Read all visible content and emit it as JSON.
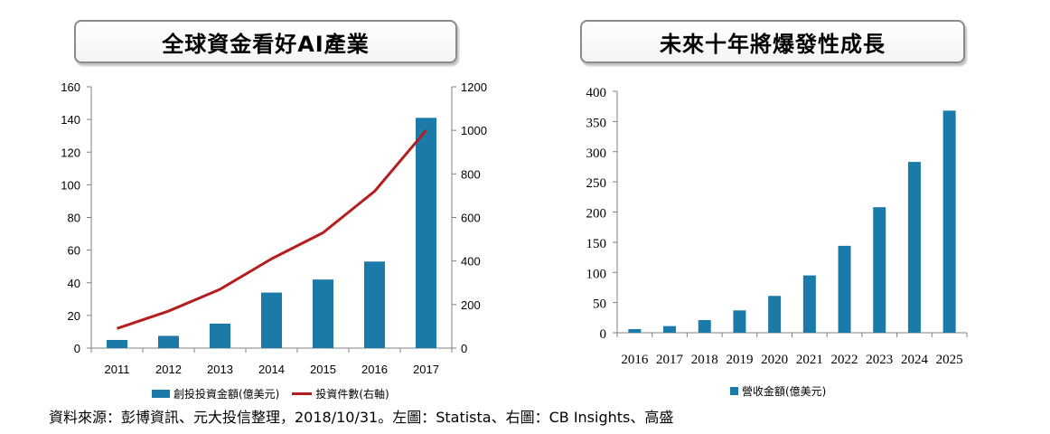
{
  "chart_data": [
    {
      "type": "bar+line",
      "title": "全球資金看好AI產業",
      "categories": [
        "2011",
        "2012",
        "2013",
        "2014",
        "2015",
        "2016",
        "2017"
      ],
      "series": [
        {
          "name": "創投投資金額(億美元)",
          "type": "bar",
          "axis": "left",
          "values": [
            5,
            7.5,
            15,
            34,
            42,
            53,
            141
          ]
        },
        {
          "name": "投資件數(右軸)",
          "type": "line",
          "axis": "right",
          "values": [
            90,
            170,
            270,
            410,
            530,
            720,
            1000
          ]
        }
      ],
      "ylim_left": [
        0,
        160
      ],
      "yticks_left": [
        "0",
        "20",
        "40",
        "60",
        "80",
        "100",
        "120",
        "140",
        "160"
      ],
      "ylim_right": [
        0,
        1200
      ],
      "yticks_right": [
        "0",
        "200",
        "400",
        "600",
        "800",
        "1000",
        "1200"
      ],
      "grid": false,
      "legend": "bottom",
      "colors": {
        "bar": "#1b7aa8",
        "line": "#b41e1e"
      }
    },
    {
      "type": "bar",
      "title": "未來十年將爆發性成長",
      "categories": [
        "2016",
        "2017",
        "2018",
        "2019",
        "2020",
        "2021",
        "2022",
        "2023",
        "2024",
        "2025"
      ],
      "series": [
        {
          "name": "營收金額(億美元)",
          "values": [
            6,
            11,
            21,
            37,
            61,
            95,
            144,
            208,
            283,
            368
          ]
        }
      ],
      "ylim": [
        0,
        400
      ],
      "yticks": [
        "0",
        "50",
        "100",
        "150",
        "200",
        "250",
        "300",
        "350",
        "400"
      ],
      "grid": false,
      "legend": "bottom",
      "colors": {
        "bar": "#1b7aa8"
      }
    }
  ],
  "source_note": "資料來源：彭博資訊、元大投信整理，2018/10/31。左圖：Statista、右圖：CB Insights、高盛"
}
